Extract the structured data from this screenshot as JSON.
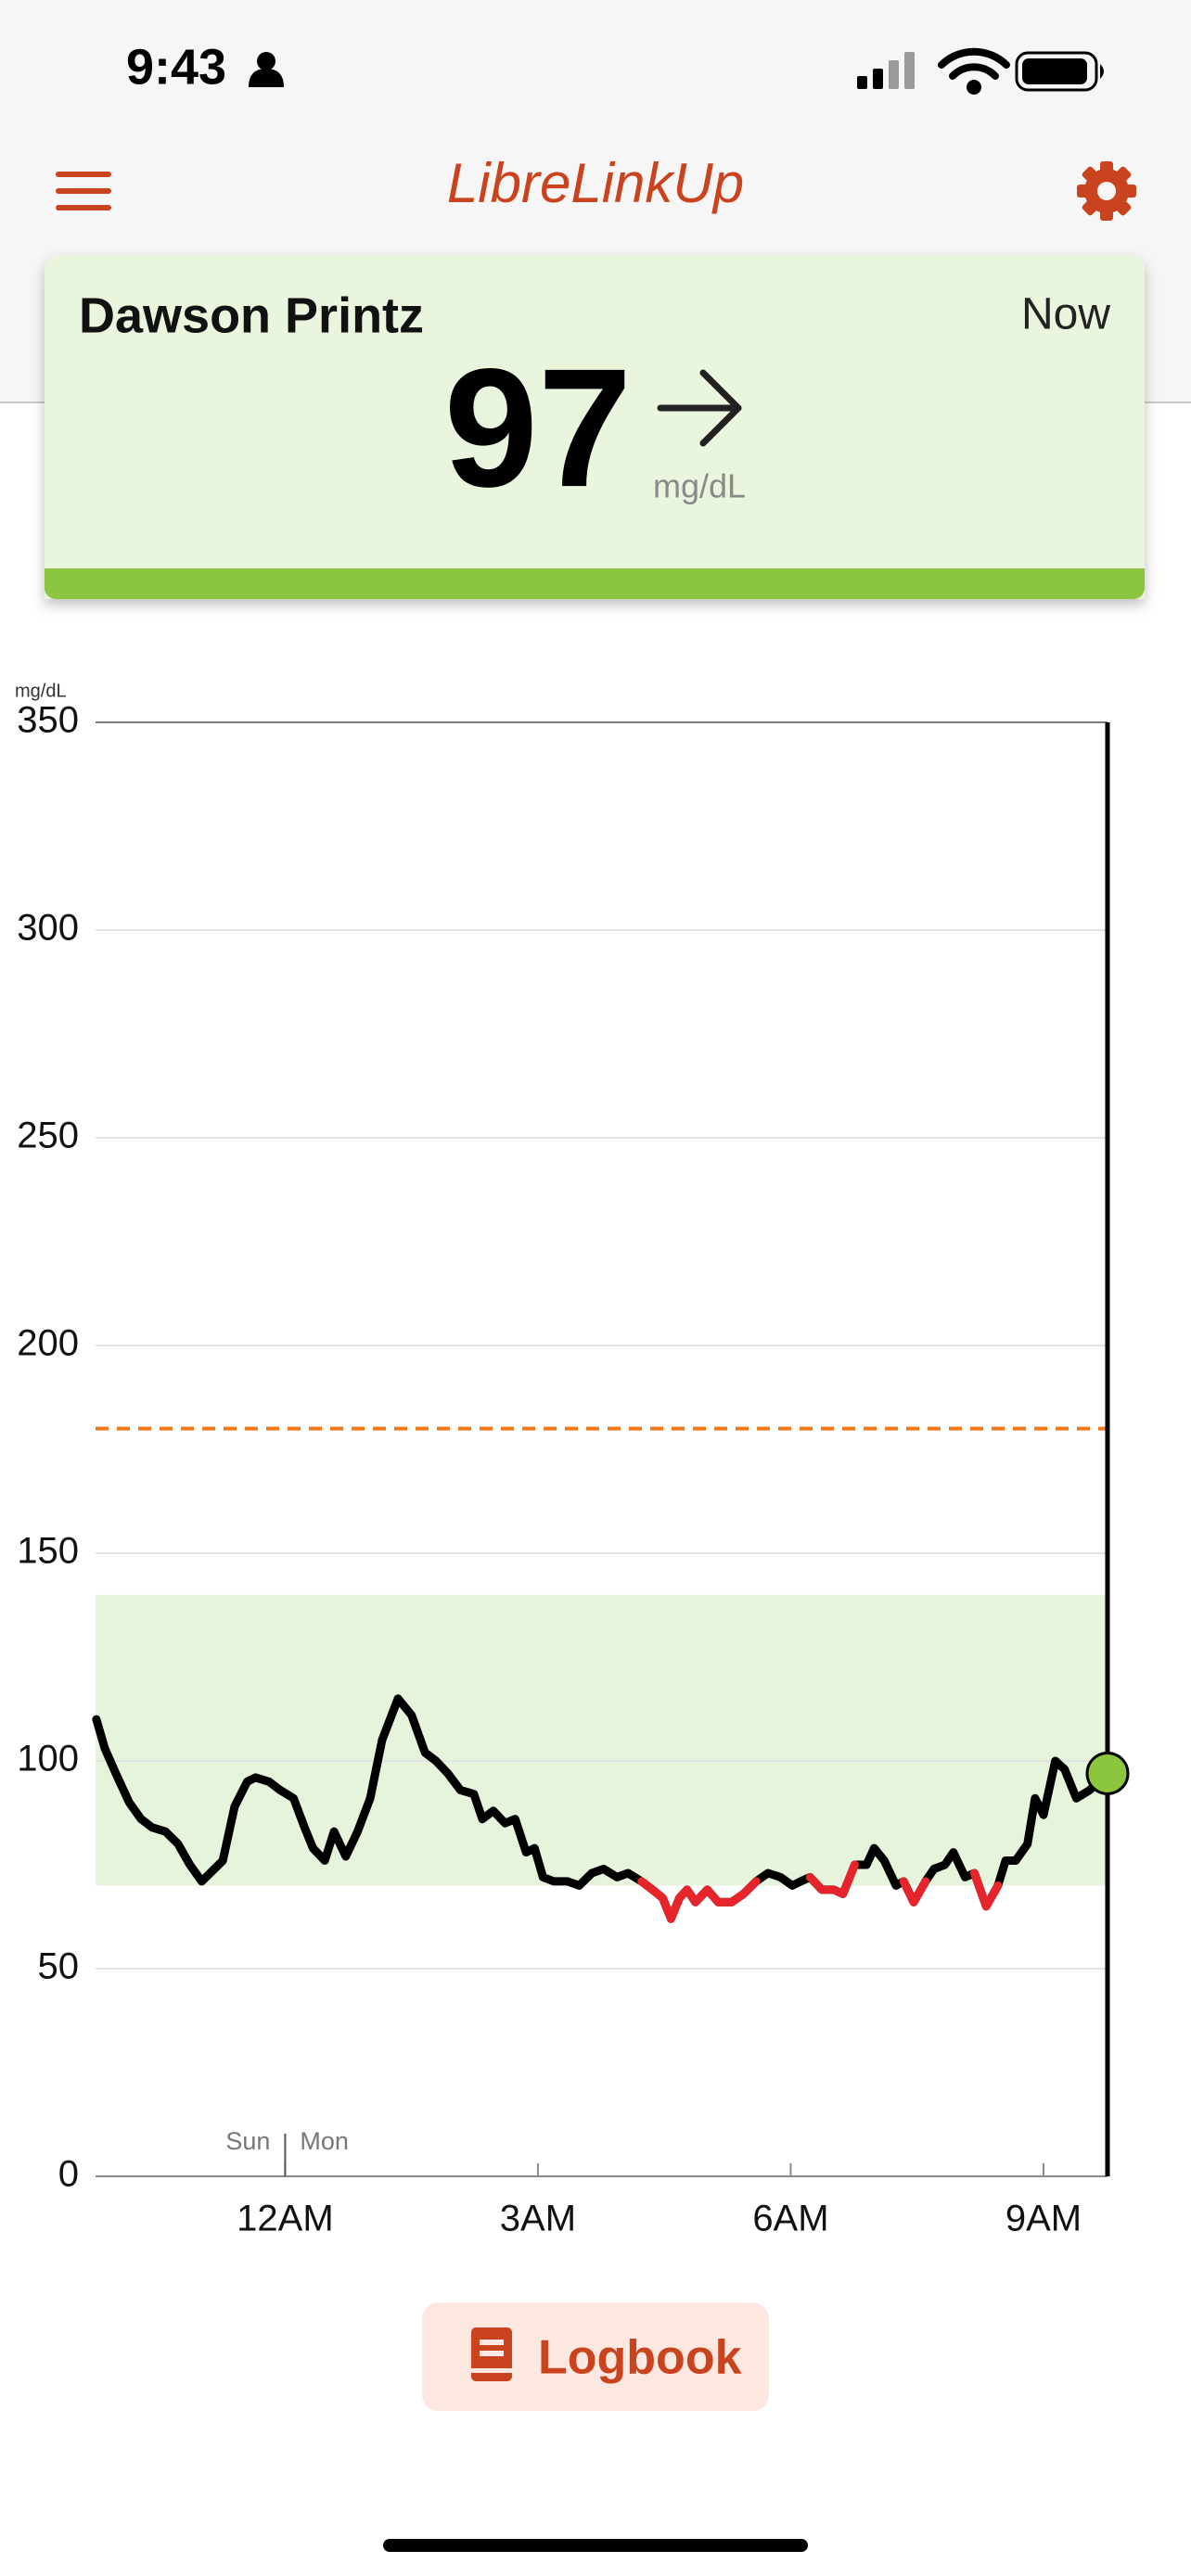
{
  "status_bar": {
    "time": "9:43"
  },
  "header": {
    "title": "LibreLinkUp"
  },
  "card": {
    "name": "Dawson Printz",
    "time": "Now",
    "value": 97,
    "unit": "mg/dL"
  },
  "chart_data": {
    "type": "line",
    "y_axis_label": "mg/dL",
    "x": [
      -2.24,
      -2.14,
      -2.01,
      -1.85,
      -1.71,
      -1.58,
      -1.42,
      -1.27,
      -1.13,
      -0.99,
      -0.84,
      -0.74,
      -0.6,
      -0.45,
      -0.35,
      -0.19,
      -0.06,
      0.1,
      0.23,
      0.33,
      0.47,
      0.58,
      0.72,
      0.86,
      1.01,
      1.15,
      1.34,
      1.5,
      1.66,
      1.79,
      1.93,
      2.08,
      2.24,
      2.34,
      2.47,
      2.61,
      2.73,
      2.86,
      2.96,
      3.06,
      3.19,
      3.35,
      3.49,
      3.64,
      3.78,
      3.94,
      4.07,
      4.23,
      4.36,
      4.48,
      4.58,
      4.68,
      4.77,
      4.87,
      5.01,
      5.14,
      5.3,
      5.44,
      5.59,
      5.73,
      5.88,
      6.02,
      6.12,
      6.23,
      6.37,
      6.51,
      6.62,
      6.76,
      6.9,
      6.99,
      7.11,
      7.25,
      7.34,
      7.46,
      7.6,
      7.7,
      7.83,
      7.93,
      8.07,
      8.18,
      8.32,
      8.46,
      8.55,
      8.67,
      8.81,
      8.9,
      9.0,
      9.14,
      9.25,
      9.39,
      9.55,
      9.76
    ],
    "values": [
      110,
      103,
      97,
      90,
      86,
      84,
      83,
      80,
      75,
      71,
      74,
      76,
      89,
      95,
      96,
      95,
      93,
      91,
      84,
      79,
      76,
      83,
      77,
      83,
      91,
      105,
      115,
      111,
      102,
      100,
      97,
      93,
      92,
      86,
      88,
      85,
      86,
      78,
      79,
      72,
      71,
      71,
      70,
      73,
      74,
      72,
      73,
      71,
      69,
      67,
      62,
      67,
      69,
      66,
      69,
      66,
      66,
      68,
      71,
      73,
      72,
      70,
      71,
      72,
      69,
      69,
      68,
      75,
      75,
      79,
      76,
      70,
      71,
      66,
      71,
      74,
      75,
      78,
      72,
      73,
      65,
      70,
      76,
      76,
      80,
      91,
      87,
      100,
      98,
      91,
      93,
      97
    ],
    "color": "#000000",
    "low_color": "#e5242b",
    "target_range": [
      70,
      140
    ],
    "target_color": "#e6f4dc",
    "high_line": 180,
    "high_line_color": "#f07a1a",
    "current_color": "#8cc63f",
    "ylim": [
      0,
      350
    ],
    "yticks": [
      0,
      50,
      100,
      150,
      200,
      250,
      300,
      350
    ],
    "xlim": [
      -2.25,
      9.76
    ],
    "xticks": [
      {
        "value": 0,
        "label": "12AM"
      },
      {
        "value": 3,
        "label": "3AM"
      },
      {
        "value": 6,
        "label": "6AM"
      },
      {
        "value": 9,
        "label": "9AM"
      }
    ],
    "day_labels": [
      "Sun",
      "Mon"
    ],
    "day_divider": 0,
    "grid": true
  },
  "button": {
    "label": "Logbook"
  }
}
